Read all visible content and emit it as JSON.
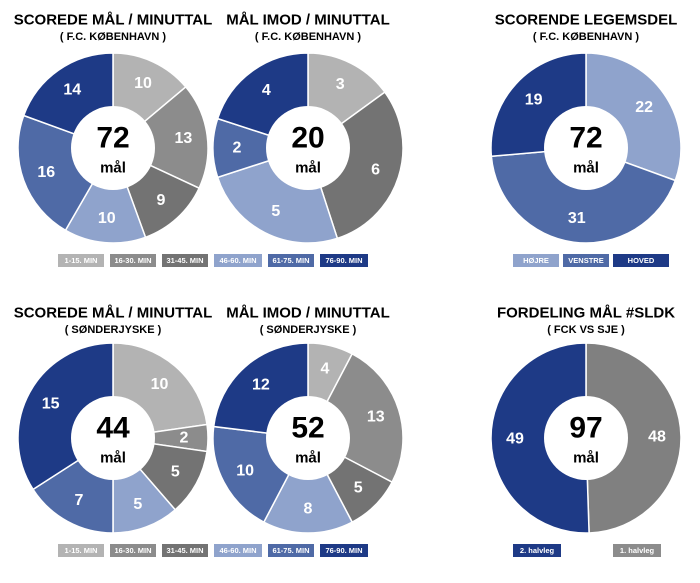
{
  "colors": {
    "c1": "#b3b3b3",
    "c2": "#8c8c8c",
    "c3": "#737373",
    "c4": "#8fa3cc",
    "c5": "#4f6aa6",
    "c6": "#1e3a86",
    "legend_text": "#ffffff",
    "center_text": "#000000",
    "separator": "#ffffff"
  },
  "legends": {
    "minute_ranges": [
      "1-15. MIN",
      "16-30. MIN",
      "31-45. MIN",
      "46-60. MIN",
      "61-75. MIN",
      "76-90. MIN"
    ],
    "body_parts": [
      "HØJRE",
      "VENSTRE",
      "HOVED"
    ],
    "halves": [
      "2. halvleg",
      "1. halvleg"
    ]
  },
  "chart_data": [
    {
      "type": "pie",
      "title": "SCOREDE MÅL / MINUTTAL",
      "subtitle": "( F.C. KØBENHAVN )",
      "center_value": "72",
      "center_unit": "mål",
      "categories": [
        "1-15. MIN",
        "16-30. MIN",
        "31-45. MIN",
        "46-60. MIN",
        "61-75. MIN",
        "76-90. MIN"
      ],
      "values": [
        10,
        13,
        9,
        10,
        16,
        14
      ],
      "colors": [
        "#b3b3b3",
        "#8c8c8c",
        "#737373",
        "#8fa3cc",
        "#4f6aa6",
        "#1e3a86"
      ]
    },
    {
      "type": "pie",
      "title": "MÅL IMOD / MINUTTAL",
      "subtitle": "( F.C. KØBENHAVN )",
      "center_value": "20",
      "center_unit": "mål",
      "categories": [
        "1-15. MIN",
        "16-30. MIN",
        "31-45. MIN",
        "46-60. MIN",
        "61-75. MIN",
        "76-90. MIN"
      ],
      "values": [
        3,
        0,
        6,
        5,
        2,
        4
      ],
      "colors": [
        "#b3b3b3",
        "#8c8c8c",
        "#737373",
        "#8fa3cc",
        "#4f6aa6",
        "#1e3a86"
      ]
    },
    {
      "type": "pie",
      "title": "SCORENDE LEGEMSDEL",
      "subtitle": "( F.C. KØBENHAVN )",
      "center_value": "72",
      "center_unit": "mål",
      "categories": [
        "HØJRE",
        "VENSTRE",
        "HOVED"
      ],
      "values": [
        22,
        31,
        19
      ],
      "colors": [
        "#8fa3cc",
        "#4f6aa6",
        "#1e3a86"
      ]
    },
    {
      "type": "pie",
      "title": "SCOREDE MÅL / MINUTTAL",
      "subtitle": "( SØNDERJYSKE )",
      "center_value": "44",
      "center_unit": "mål",
      "categories": [
        "1-15. MIN",
        "16-30. MIN",
        "31-45. MIN",
        "46-60. MIN",
        "61-75. MIN",
        "76-90. MIN"
      ],
      "values": [
        10,
        2,
        5,
        5,
        7,
        15
      ],
      "colors": [
        "#b3b3b3",
        "#8c8c8c",
        "#737373",
        "#8fa3cc",
        "#4f6aa6",
        "#1e3a86"
      ]
    },
    {
      "type": "pie",
      "title": "MÅL IMOD / MINUTTAL",
      "subtitle": "( SØNDERJYSKE )",
      "center_value": "52",
      "center_unit": "mål",
      "categories": [
        "1-15. MIN",
        "16-30. MIN",
        "31-45. MIN",
        "46-60. MIN",
        "61-75. MIN",
        "76-90. MIN"
      ],
      "values": [
        4,
        13,
        5,
        8,
        10,
        12
      ],
      "colors": [
        "#b3b3b3",
        "#8c8c8c",
        "#737373",
        "#8fa3cc",
        "#4f6aa6",
        "#1e3a86"
      ]
    },
    {
      "type": "pie",
      "title": "FORDELING MÅL #SLDK",
      "subtitle": "( FCK VS SJE )",
      "center_value": "97",
      "center_unit": "mål",
      "categories": [
        "1. halvleg",
        "2. halvleg"
      ],
      "values": [
        48,
        49
      ],
      "colors": [
        "#808080",
        "#1e3a86"
      ]
    }
  ]
}
